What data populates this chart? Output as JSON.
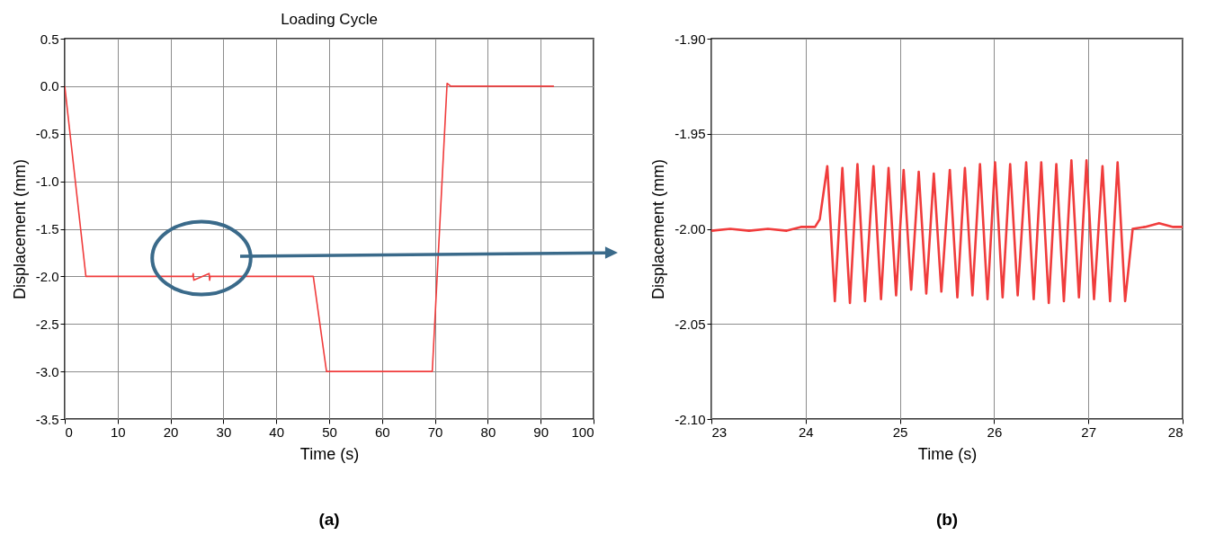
{
  "chart_data": [
    {
      "type": "line",
      "title": "Loading Cycle",
      "xlabel": "Time (s)",
      "ylabel": "Displacement (mm)",
      "grid": true,
      "xlim": [
        0,
        100
      ],
      "xticks": [
        0,
        10,
        20,
        30,
        40,
        50,
        60,
        70,
        80,
        90,
        100
      ],
      "ylim": [
        -3.5,
        0.5
      ],
      "yticks": [
        {
          "value": -3.5,
          "label": "-3.5"
        },
        {
          "value": -3.0,
          "label": "-3.0"
        },
        {
          "value": -2.5,
          "label": "-2.5"
        },
        {
          "value": -2.0,
          "label": "-2.0"
        },
        {
          "value": -1.5,
          "label": "-1.5"
        },
        {
          "value": -1.0,
          "label": "-1.0"
        },
        {
          "value": -0.5,
          "label": "-0.5"
        },
        {
          "value": 0.0,
          "label": "0.0"
        },
        {
          "value": 0.5,
          "label": "0.5"
        }
      ],
      "series": [
        {
          "color": "#f03c3c",
          "x": [
            0,
            4,
            24.2,
            24.3,
            24.4,
            27.3,
            27.4,
            27.5,
            47,
            49.5,
            69.5,
            72.3,
            73,
            92.5
          ],
          "values": [
            0,
            -2.0,
            -2.0,
            -1.97,
            -2.04,
            -1.97,
            -2.04,
            -2.0,
            -2.0,
            -3.0,
            -3.0,
            0.03,
            0,
            0
          ]
        }
      ],
      "annotations": [
        "(a)"
      ]
    },
    {
      "type": "line",
      "xlabel": "Time (s)",
      "ylabel": "Displacement (mm)",
      "grid": true,
      "xlim": [
        23,
        28
      ],
      "xticks": [
        23,
        24,
        25,
        26,
        27,
        28
      ],
      "ylim": [
        -2.1,
        -1.9
      ],
      "yticks": [
        {
          "value": -2.1,
          "label": "-2.10"
        },
        {
          "value": -2.05,
          "label": "-2.05"
        },
        {
          "value": -2.0,
          "label": "-2.00"
        },
        {
          "value": -1.95,
          "label": "-1.95"
        },
        {
          "value": -1.9,
          "label": "-1.90"
        }
      ],
      "series": [
        {
          "color": "#f03c3c",
          "x": [
            23.0,
            23.2,
            23.4,
            23.6,
            23.8,
            23.95,
            24.1,
            24.15,
            24.23,
            24.31,
            24.39,
            24.47,
            24.55,
            24.63,
            24.72,
            24.8,
            24.88,
            24.96,
            25.04,
            25.12,
            25.2,
            25.28,
            25.36,
            25.44,
            25.53,
            25.61,
            25.69,
            25.77,
            25.85,
            25.93,
            26.01,
            26.09,
            26.17,
            26.25,
            26.34,
            26.42,
            26.5,
            26.58,
            26.66,
            26.74,
            26.82,
            26.9,
            26.98,
            27.06,
            27.15,
            27.23,
            27.31,
            27.39,
            27.47,
            27.6,
            27.75,
            27.9,
            28.0
          ],
          "values": [
            -2.001,
            -2.0,
            -2.001,
            -2.0,
            -2.001,
            -1.999,
            -1.999,
            -1.995,
            -1.967,
            -2.038,
            -1.968,
            -2.039,
            -1.966,
            -2.038,
            -1.967,
            -2.037,
            -1.968,
            -2.035,
            -1.969,
            -2.032,
            -1.97,
            -2.034,
            -1.971,
            -2.033,
            -1.969,
            -2.036,
            -1.968,
            -2.035,
            -1.966,
            -2.037,
            -1.965,
            -2.036,
            -1.966,
            -2.035,
            -1.965,
            -2.037,
            -1.965,
            -2.039,
            -1.966,
            -2.038,
            -1.964,
            -2.036,
            -1.964,
            -2.037,
            -1.967,
            -2.038,
            -1.965,
            -2.038,
            -2.0,
            -1.999,
            -1.997,
            -1.999,
            -1.999
          ]
        }
      ],
      "annotations": [
        "(b)"
      ]
    }
  ]
}
